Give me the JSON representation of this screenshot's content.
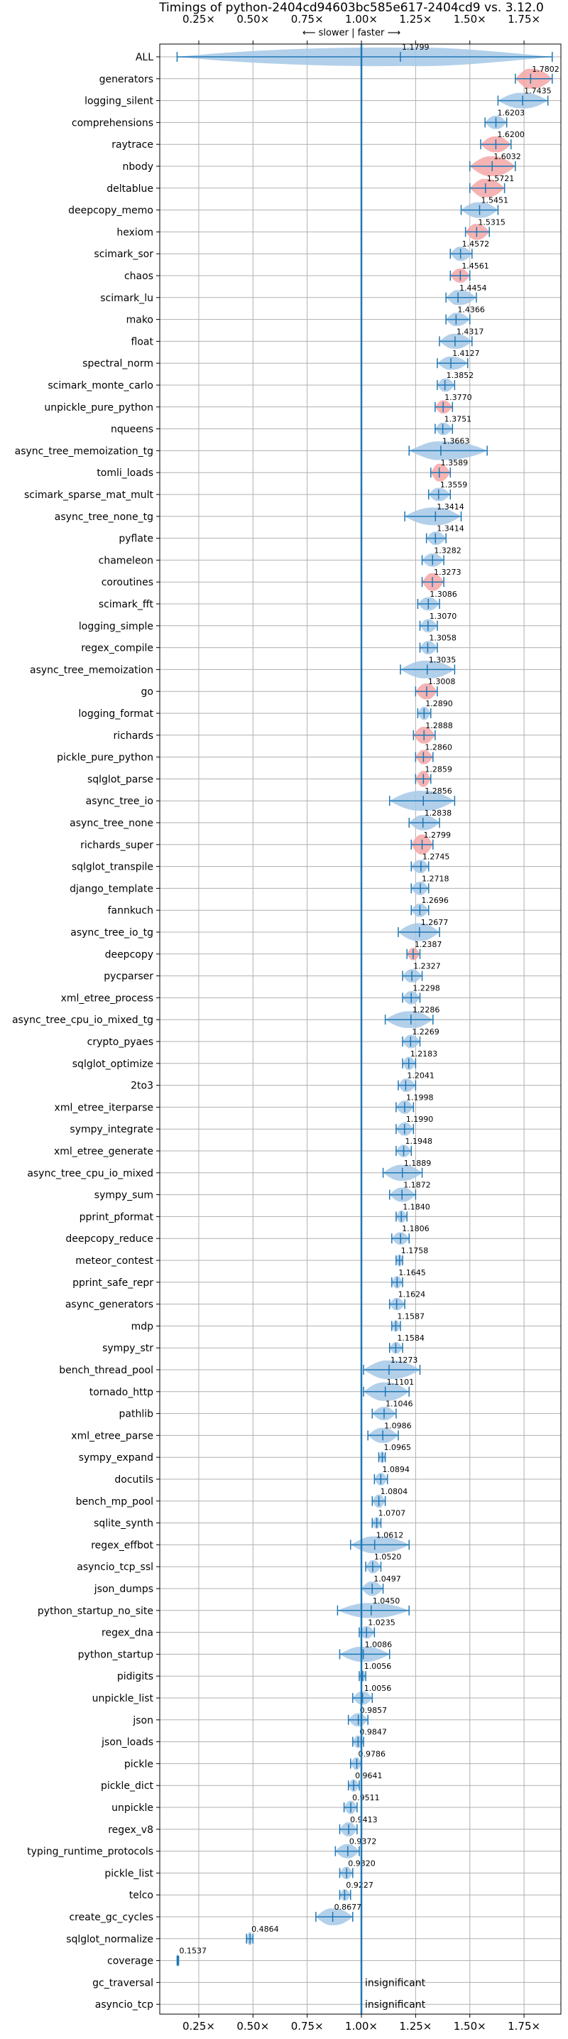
{
  "chart_data": {
    "type": "violin",
    "title": "Timings of python-2404cd94603bc585e617-2404cd9 vs. 3.12.0",
    "subtitle": "⟵ slower | faster ⟶",
    "x_ticks": [
      0.25,
      0.5,
      0.75,
      1.0,
      1.25,
      1.5,
      1.75
    ],
    "x_tick_labels": [
      "0.25×",
      "0.50×",
      "0.75×",
      "1.00×",
      "1.25×",
      "1.50×",
      "1.75×"
    ],
    "xlim": [
      0.07,
      1.92
    ],
    "reference_line": 1.0,
    "grid": true,
    "colors": {
      "faster": "#a6c8e6",
      "highlight": "#f4a6a6",
      "line": "#1f77b4",
      "grid": "#b0b0b0"
    },
    "insignificant_text": "insignificant",
    "benchmarks": [
      {
        "name": "ALL",
        "value": 1.1799,
        "label": "1.1799",
        "min": 0.15,
        "max": 1.88,
        "width": 0.42,
        "highlight": false
      },
      {
        "name": "generators",
        "value": 1.7802,
        "label": "1.7802",
        "min": 1.71,
        "max": 1.88,
        "width": 0.45,
        "highlight": true
      },
      {
        "name": "logging_silent",
        "value": 1.7435,
        "label": "1.7435",
        "min": 1.63,
        "max": 1.86,
        "width": 0.35,
        "highlight": false
      },
      {
        "name": "comprehensions",
        "value": 1.6203,
        "label": "1.6203",
        "min": 1.57,
        "max": 1.67,
        "width": 0.3,
        "highlight": false
      },
      {
        "name": "raytrace",
        "value": 1.62,
        "label": "1.6200",
        "min": 1.55,
        "max": 1.69,
        "width": 0.36,
        "highlight": true
      },
      {
        "name": "nbody",
        "value": 1.6032,
        "label": "1.6032",
        "min": 1.5,
        "max": 1.71,
        "width": 0.45,
        "highlight": true
      },
      {
        "name": "deltablue",
        "value": 1.5721,
        "label": "1.5721",
        "min": 1.5,
        "max": 1.66,
        "width": 0.42,
        "highlight": true
      },
      {
        "name": "deepcopy_memo",
        "value": 1.5451,
        "label": "1.5451",
        "min": 1.46,
        "max": 1.63,
        "width": 0.35,
        "highlight": false
      },
      {
        "name": "hexiom",
        "value": 1.5315,
        "label": "1.5315",
        "min": 1.48,
        "max": 1.59,
        "width": 0.36,
        "highlight": true
      },
      {
        "name": "scimark_sor",
        "value": 1.4572,
        "label": "1.4572",
        "min": 1.41,
        "max": 1.51,
        "width": 0.32,
        "highlight": false
      },
      {
        "name": "chaos",
        "value": 1.4561,
        "label": "1.4561",
        "min": 1.41,
        "max": 1.5,
        "width": 0.32,
        "highlight": true
      },
      {
        "name": "scimark_lu",
        "value": 1.4454,
        "label": "1.4454",
        "min": 1.39,
        "max": 1.53,
        "width": 0.34,
        "highlight": false
      },
      {
        "name": "mako",
        "value": 1.4366,
        "label": "1.4366",
        "min": 1.39,
        "max": 1.5,
        "width": 0.3,
        "highlight": false
      },
      {
        "name": "float",
        "value": 1.4317,
        "label": "1.4317",
        "min": 1.36,
        "max": 1.51,
        "width": 0.34,
        "highlight": false
      },
      {
        "name": "spectral_norm",
        "value": 1.4127,
        "label": "1.4127",
        "min": 1.35,
        "max": 1.49,
        "width": 0.3,
        "highlight": false
      },
      {
        "name": "scimark_monte_carlo",
        "value": 1.3852,
        "label": "1.3852",
        "min": 1.35,
        "max": 1.43,
        "width": 0.3,
        "highlight": false
      },
      {
        "name": "unpickle_pure_python",
        "value": 1.377,
        "label": "1.3770",
        "min": 1.34,
        "max": 1.42,
        "width": 0.3,
        "highlight": true
      },
      {
        "name": "nqueens",
        "value": 1.3751,
        "label": "1.3751",
        "min": 1.34,
        "max": 1.42,
        "width": 0.28,
        "highlight": false
      },
      {
        "name": "async_tree_memoization_tg",
        "value": 1.3663,
        "label": "1.3663",
        "min": 1.22,
        "max": 1.58,
        "width": 0.42,
        "highlight": false
      },
      {
        "name": "tomli_loads",
        "value": 1.3589,
        "label": "1.3589",
        "min": 1.32,
        "max": 1.41,
        "width": 0.4,
        "highlight": true
      },
      {
        "name": "scimark_sparse_mat_mult",
        "value": 1.3559,
        "label": "1.3559",
        "min": 1.31,
        "max": 1.41,
        "width": 0.3,
        "highlight": false
      },
      {
        "name": "async_tree_none_tg",
        "value": 1.3414,
        "label": "1.3414",
        "min": 1.2,
        "max": 1.46,
        "width": 0.4,
        "highlight": false
      },
      {
        "name": "pyflate",
        "value": 1.3414,
        "label": "1.3414",
        "min": 1.3,
        "max": 1.39,
        "width": 0.3,
        "highlight": false
      },
      {
        "name": "chameleon",
        "value": 1.3282,
        "label": "1.3282",
        "min": 1.28,
        "max": 1.38,
        "width": 0.3,
        "highlight": false
      },
      {
        "name": "coroutines",
        "value": 1.3273,
        "label": "1.3273",
        "min": 1.28,
        "max": 1.38,
        "width": 0.4,
        "highlight": true
      },
      {
        "name": "scimark_fft",
        "value": 1.3086,
        "label": "1.3086",
        "min": 1.26,
        "max": 1.36,
        "width": 0.3,
        "highlight": false
      },
      {
        "name": "logging_simple",
        "value": 1.307,
        "label": "1.3070",
        "min": 1.27,
        "max": 1.35,
        "width": 0.3,
        "highlight": false
      },
      {
        "name": "regex_compile",
        "value": 1.3058,
        "label": "1.3058",
        "min": 1.27,
        "max": 1.35,
        "width": 0.3,
        "highlight": false
      },
      {
        "name": "async_tree_memoization",
        "value": 1.3035,
        "label": "1.3035",
        "min": 1.18,
        "max": 1.43,
        "width": 0.4,
        "highlight": false
      },
      {
        "name": "go",
        "value": 1.3008,
        "label": "1.3008",
        "min": 1.25,
        "max": 1.35,
        "width": 0.36,
        "highlight": true
      },
      {
        "name": "logging_format",
        "value": 1.289,
        "label": "1.2890",
        "min": 1.26,
        "max": 1.32,
        "width": 0.3,
        "highlight": false
      },
      {
        "name": "richards",
        "value": 1.2888,
        "label": "1.2888",
        "min": 1.24,
        "max": 1.34,
        "width": 0.38,
        "highlight": true
      },
      {
        "name": "pickle_pure_python",
        "value": 1.286,
        "label": "1.2860",
        "min": 1.25,
        "max": 1.33,
        "width": 0.32,
        "highlight": true
      },
      {
        "name": "sqlglot_parse",
        "value": 1.2859,
        "label": "1.2859",
        "min": 1.25,
        "max": 1.32,
        "width": 0.36,
        "highlight": true
      },
      {
        "name": "async_tree_io",
        "value": 1.2856,
        "label": "1.2856",
        "min": 1.13,
        "max": 1.43,
        "width": 0.45,
        "highlight": false
      },
      {
        "name": "async_tree_none",
        "value": 1.2838,
        "label": "1.2838",
        "min": 1.22,
        "max": 1.36,
        "width": 0.34,
        "highlight": false
      },
      {
        "name": "richards_super",
        "value": 1.2799,
        "label": "1.2799",
        "min": 1.23,
        "max": 1.33,
        "width": 0.45,
        "highlight": true
      },
      {
        "name": "sqlglot_transpile",
        "value": 1.2745,
        "label": "1.2745",
        "min": 1.23,
        "max": 1.31,
        "width": 0.3,
        "highlight": false
      },
      {
        "name": "django_template",
        "value": 1.2718,
        "label": "1.2718",
        "min": 1.23,
        "max": 1.31,
        "width": 0.3,
        "highlight": false
      },
      {
        "name": "fannkuch",
        "value": 1.2696,
        "label": "1.2696",
        "min": 1.23,
        "max": 1.31,
        "width": 0.3,
        "highlight": false
      },
      {
        "name": "async_tree_io_tg",
        "value": 1.2677,
        "label": "1.2677",
        "min": 1.17,
        "max": 1.36,
        "width": 0.4,
        "highlight": false
      },
      {
        "name": "deepcopy",
        "value": 1.2387,
        "label": "1.2387",
        "min": 1.21,
        "max": 1.27,
        "width": 0.28,
        "highlight": true
      },
      {
        "name": "pycparser",
        "value": 1.2327,
        "label": "1.2327",
        "min": 1.19,
        "max": 1.28,
        "width": 0.3,
        "highlight": false
      },
      {
        "name": "xml_etree_process",
        "value": 1.2298,
        "label": "1.2298",
        "min": 1.19,
        "max": 1.27,
        "width": 0.3,
        "highlight": false
      },
      {
        "name": "async_tree_cpu_io_mixed_tg",
        "value": 1.2286,
        "label": "1.2286",
        "min": 1.11,
        "max": 1.33,
        "width": 0.38,
        "highlight": false
      },
      {
        "name": "crypto_pyaes",
        "value": 1.2269,
        "label": "1.2269",
        "min": 1.19,
        "max": 1.27,
        "width": 0.3,
        "highlight": false
      },
      {
        "name": "sqlglot_optimize",
        "value": 1.2183,
        "label": "1.2183",
        "min": 1.19,
        "max": 1.25,
        "width": 0.3,
        "highlight": false
      },
      {
        "name": "2to3",
        "value": 1.2041,
        "label": "1.2041",
        "min": 1.17,
        "max": 1.25,
        "width": 0.3,
        "highlight": false
      },
      {
        "name": "xml_etree_iterparse",
        "value": 1.1998,
        "label": "1.1998",
        "min": 1.16,
        "max": 1.24,
        "width": 0.3,
        "highlight": false
      },
      {
        "name": "sympy_integrate",
        "value": 1.199,
        "label": "1.1990",
        "min": 1.16,
        "max": 1.24,
        "width": 0.3,
        "highlight": false
      },
      {
        "name": "xml_etree_generate",
        "value": 1.1948,
        "label": "1.1948",
        "min": 1.16,
        "max": 1.23,
        "width": 0.28,
        "highlight": false
      },
      {
        "name": "async_tree_cpu_io_mixed",
        "value": 1.1889,
        "label": "1.1889",
        "min": 1.1,
        "max": 1.28,
        "width": 0.36,
        "highlight": false
      },
      {
        "name": "sympy_sum",
        "value": 1.1872,
        "label": "1.1872",
        "min": 1.13,
        "max": 1.25,
        "width": 0.32,
        "highlight": false
      },
      {
        "name": "pprint_pformat",
        "value": 1.184,
        "label": "1.1840",
        "min": 1.16,
        "max": 1.21,
        "width": 0.28,
        "highlight": false
      },
      {
        "name": "deepcopy_reduce",
        "value": 1.1806,
        "label": "1.1806",
        "min": 1.14,
        "max": 1.22,
        "width": 0.28,
        "highlight": false
      },
      {
        "name": "meteor_contest",
        "value": 1.1758,
        "label": "1.1758",
        "min": 1.16,
        "max": 1.19,
        "width": 0.28,
        "highlight": false
      },
      {
        "name": "pprint_safe_repr",
        "value": 1.1645,
        "label": "1.1645",
        "min": 1.14,
        "max": 1.19,
        "width": 0.28,
        "highlight": false
      },
      {
        "name": "async_generators",
        "value": 1.1624,
        "label": "1.1624",
        "min": 1.13,
        "max": 1.2,
        "width": 0.28,
        "highlight": false
      },
      {
        "name": "mdp",
        "value": 1.1587,
        "label": "1.1587",
        "min": 1.14,
        "max": 1.18,
        "width": 0.26,
        "highlight": false
      },
      {
        "name": "sympy_str",
        "value": 1.1584,
        "label": "1.1584",
        "min": 1.13,
        "max": 1.19,
        "width": 0.26,
        "highlight": false
      },
      {
        "name": "bench_thread_pool",
        "value": 1.1273,
        "label": "1.1273",
        "min": 1.01,
        "max": 1.27,
        "width": 0.42,
        "highlight": false
      },
      {
        "name": "tornado_http",
        "value": 1.1101,
        "label": "1.1101",
        "min": 1.01,
        "max": 1.22,
        "width": 0.42,
        "highlight": false
      },
      {
        "name": "pathlib",
        "value": 1.1046,
        "label": "1.1046",
        "min": 1.05,
        "max": 1.16,
        "width": 0.3,
        "highlight": false
      },
      {
        "name": "xml_etree_parse",
        "value": 1.0986,
        "label": "1.0986",
        "min": 1.03,
        "max": 1.17,
        "width": 0.34,
        "highlight": false
      },
      {
        "name": "sympy_expand",
        "value": 1.0965,
        "label": "1.0965",
        "min": 1.08,
        "max": 1.11,
        "width": 0.26,
        "highlight": false
      },
      {
        "name": "docutils",
        "value": 1.0894,
        "label": "1.0894",
        "min": 1.06,
        "max": 1.12,
        "width": 0.28,
        "highlight": false
      },
      {
        "name": "bench_mp_pool",
        "value": 1.0804,
        "label": "1.0804",
        "min": 1.05,
        "max": 1.11,
        "width": 0.3,
        "highlight": false
      },
      {
        "name": "sqlite_synth",
        "value": 1.0707,
        "label": "1.0707",
        "min": 1.05,
        "max": 1.09,
        "width": 0.26,
        "highlight": false
      },
      {
        "name": "regex_effbot",
        "value": 1.0612,
        "label": "1.0612",
        "min": 0.95,
        "max": 1.22,
        "width": 0.38,
        "highlight": false
      },
      {
        "name": "asyncio_tcp_ssl",
        "value": 1.052,
        "label": "1.0520",
        "min": 1.02,
        "max": 1.09,
        "width": 0.3,
        "highlight": false
      },
      {
        "name": "json_dumps",
        "value": 1.0497,
        "label": "1.0497",
        "min": 1.0,
        "max": 1.1,
        "width": 0.32,
        "highlight": false
      },
      {
        "name": "python_startup_no_site",
        "value": 1.045,
        "label": "1.0450",
        "min": 0.89,
        "max": 1.22,
        "width": 0.34,
        "highlight": false
      },
      {
        "name": "regex_dna",
        "value": 1.0235,
        "label": "1.0235",
        "min": 0.99,
        "max": 1.06,
        "width": 0.28,
        "highlight": false
      },
      {
        "name": "python_startup",
        "value": 1.0086,
        "label": "1.0086",
        "min": 0.9,
        "max": 1.13,
        "width": 0.34,
        "highlight": false
      },
      {
        "name": "pidigits",
        "value": 1.0056,
        "label": "1.0056",
        "min": 0.99,
        "max": 1.02,
        "width": 0.26,
        "highlight": false
      },
      {
        "name": "unpickle_list",
        "value": 1.0056,
        "label": "1.0056",
        "min": 0.96,
        "max": 1.05,
        "width": 0.3,
        "highlight": false
      },
      {
        "name": "json",
        "value": 0.9857,
        "label": "0.9857",
        "min": 0.94,
        "max": 1.03,
        "width": 0.3,
        "highlight": false
      },
      {
        "name": "json_loads",
        "value": 0.9847,
        "label": "0.9847",
        "min": 0.96,
        "max": 1.01,
        "width": 0.28,
        "highlight": false
      },
      {
        "name": "pickle",
        "value": 0.9786,
        "label": "0.9786",
        "min": 0.95,
        "max": 1.0,
        "width": 0.28,
        "highlight": false
      },
      {
        "name": "pickle_dict",
        "value": 0.9641,
        "label": "0.9641",
        "min": 0.94,
        "max": 0.99,
        "width": 0.28,
        "highlight": false
      },
      {
        "name": "unpickle",
        "value": 0.9511,
        "label": "0.9511",
        "min": 0.92,
        "max": 0.98,
        "width": 0.3,
        "highlight": false
      },
      {
        "name": "regex_v8",
        "value": 0.9413,
        "label": "0.9413",
        "min": 0.9,
        "max": 0.98,
        "width": 0.32,
        "highlight": false
      },
      {
        "name": "typing_runtime_protocols",
        "value": 0.9372,
        "label": "0.9372",
        "min": 0.88,
        "max": 0.99,
        "width": 0.32,
        "highlight": false
      },
      {
        "name": "pickle_list",
        "value": 0.932,
        "label": "0.9320",
        "min": 0.9,
        "max": 0.96,
        "width": 0.28,
        "highlight": false
      },
      {
        "name": "telco",
        "value": 0.9227,
        "label": "0.9227",
        "min": 0.9,
        "max": 0.95,
        "width": 0.26,
        "highlight": false
      },
      {
        "name": "create_gc_cycles",
        "value": 0.8677,
        "label": "0.8677",
        "min": 0.79,
        "max": 0.96,
        "width": 0.38,
        "highlight": false
      },
      {
        "name": "sqlglot_normalize",
        "value": 0.4864,
        "label": "0.4864",
        "min": 0.47,
        "max": 0.5,
        "width": 0.3,
        "highlight": false
      },
      {
        "name": "coverage",
        "value": 0.1537,
        "label": "0.1537",
        "min": 0.15,
        "max": 0.157,
        "width": 0.3,
        "highlight": false
      },
      {
        "name": "gc_traversal",
        "value": null,
        "label": null,
        "min": null,
        "max": null,
        "width": 0,
        "highlight": false
      },
      {
        "name": "asyncio_tcp",
        "value": null,
        "label": null,
        "min": null,
        "max": null,
        "width": 0,
        "highlight": false
      }
    ]
  }
}
